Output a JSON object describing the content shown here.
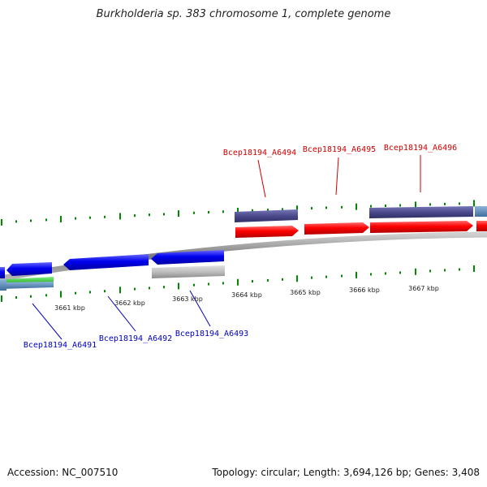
{
  "title": "Burkholderia sp. 383 chromosome 1, complete genome",
  "footer": {
    "accession": "Accession: NC_007510",
    "summary": "Topology: circular; Length: 3,694,126 bp; Genes: 3,408"
  },
  "scale_labels": [
    "3661 kbp",
    "3662 kbp",
    "3663 kbp",
    "3664 kbp",
    "3665 kbp",
    "3666 kbp",
    "3667 kbp"
  ],
  "forward_gene_labels": [
    "Bcep18194_A6494",
    "Bcep18194_A6495",
    "Bcep18194_A6496"
  ],
  "reverse_gene_labels": [
    "Bcep18194_A6491",
    "Bcep18194_A6492",
    "Bcep18194_A6493"
  ],
  "colors": {
    "forward_label": "#cc0000",
    "reverse_label": "#0000bb",
    "cds_forward": "#ff0000",
    "cds_reverse": "#0000ee",
    "gene_band": "#4a4a8c",
    "tick": "#008800",
    "backbone": "#888888"
  }
}
